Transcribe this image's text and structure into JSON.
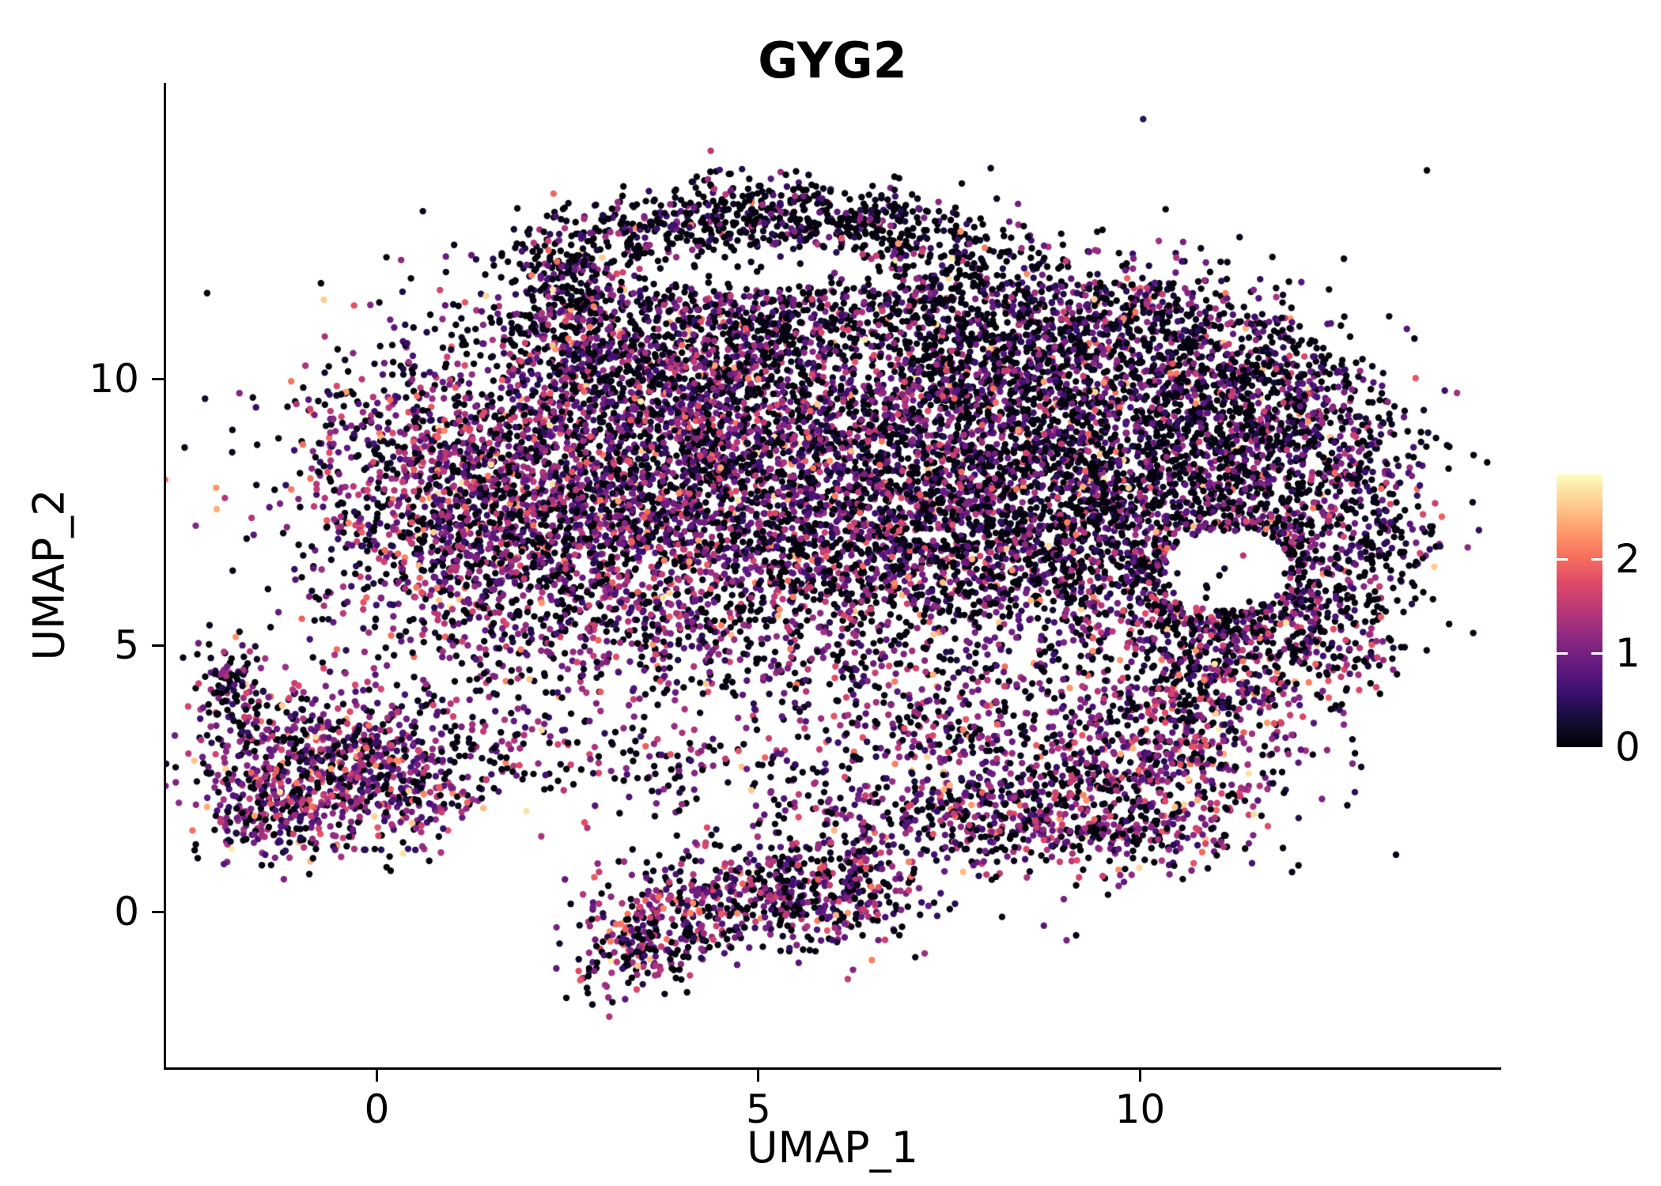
{
  "figure": {
    "background": "#ffffff",
    "axis_color": "#000000"
  },
  "chart_data": {
    "type": "scatter",
    "title": "GYG2",
    "xlabel": "UMAP_1",
    "ylabel": "UMAP_2",
    "xlim": [
      -2.76,
      14.7
    ],
    "ylim": [
      -2.92,
      15.55
    ],
    "xticks": [
      0,
      5,
      10
    ],
    "yticks": [
      0,
      5,
      10
    ],
    "grid": false,
    "legend_position": "right",
    "colorbar": {
      "ticks": [
        0,
        1,
        2
      ],
      "limits": [
        0,
        2.9
      ]
    },
    "colormap_stops": [
      [
        0,
        "#000004"
      ],
      [
        0.1,
        "#140e36"
      ],
      [
        0.2,
        "#3b0f70"
      ],
      [
        0.3,
        "#641a80"
      ],
      [
        0.4,
        "#8c2981"
      ],
      [
        0.5,
        "#b73779"
      ],
      [
        0.6,
        "#de4968"
      ],
      [
        0.7,
        "#f7705c"
      ],
      [
        0.8,
        "#fe9f6d"
      ],
      [
        0.9,
        "#fecf92"
      ],
      [
        1,
        "#fcfdbf"
      ]
    ],
    "point_radius": 4.2,
    "seed": 20240613,
    "count_scale": 0.8,
    "expr_sd": 0.5,
    "high_expr_prob": 0.03,
    "holes": [
      {
        "cx": 11.15,
        "cy": 6.4,
        "rx": 0.82,
        "ry": 0.75,
        "p": 0.93
      },
      {
        "cx": 4.9,
        "cy": 12.1,
        "rx": 1.6,
        "ry": 0.42,
        "p": 0.75
      },
      {
        "cx": 6.4,
        "cy": 10.2,
        "rx": 0.55,
        "ry": 0.45,
        "p": 0.5
      }
    ],
    "clusters": [
      {
        "cx": 0.6,
        "cy": 7.8,
        "sx": 0.95,
        "sy": 1.35,
        "n": 900,
        "p0": 0.33,
        "mu": 1.05
      },
      {
        "cx": 2.2,
        "cy": 8.8,
        "sx": 1.2,
        "sy": 1.3,
        "n": 1200,
        "p0": 0.35,
        "mu": 1.0
      },
      {
        "cx": 2.0,
        "cy": 6.8,
        "sx": 1.0,
        "sy": 0.9,
        "n": 700,
        "p0": 0.33,
        "mu": 1.05
      },
      {
        "cx": 4.2,
        "cy": 9.6,
        "sx": 1.2,
        "sy": 1.1,
        "n": 1000,
        "p0": 0.4,
        "mu": 0.95
      },
      {
        "cx": 4.0,
        "cy": 7.4,
        "sx": 1.2,
        "sy": 1.1,
        "n": 900,
        "p0": 0.35,
        "mu": 1.0
      },
      {
        "cx": 5.8,
        "cy": 8.6,
        "sx": 1.3,
        "sy": 1.3,
        "n": 1000,
        "p0": 0.42,
        "mu": 0.9
      },
      {
        "cx": 5.6,
        "cy": 6.2,
        "sx": 1.5,
        "sy": 0.85,
        "n": 800,
        "p0": 0.38,
        "mu": 1.0
      },
      {
        "cx": 7.6,
        "cy": 9.2,
        "sx": 1.3,
        "sy": 1.2,
        "n": 1200,
        "p0": 0.48,
        "mu": 0.85
      },
      {
        "cx": 7.8,
        "cy": 7.2,
        "sx": 1.3,
        "sy": 1.0,
        "n": 1000,
        "p0": 0.45,
        "mu": 0.9
      },
      {
        "cx": 9.5,
        "cy": 8.8,
        "sx": 1.2,
        "sy": 1.2,
        "n": 1100,
        "p0": 0.48,
        "mu": 0.85
      },
      {
        "cx": 9.3,
        "cy": 6.6,
        "sx": 1.2,
        "sy": 0.9,
        "n": 700,
        "p0": 0.45,
        "mu": 0.9
      },
      {
        "cx": 11.0,
        "cy": 8.3,
        "sx": 0.9,
        "sy": 1.0,
        "n": 600,
        "p0": 0.5,
        "mu": 0.85
      },
      {
        "cx": 6.7,
        "cy": 10.9,
        "sx": 1.3,
        "sy": 0.8,
        "n": 600,
        "p0": 0.5,
        "mu": 0.8
      },
      {
        "cx": 4.6,
        "cy": 11.2,
        "sx": 1.0,
        "sy": 0.7,
        "n": 450,
        "p0": 0.45,
        "mu": 0.9
      },
      {
        "cx": 8.9,
        "cy": 10.7,
        "sx": 1.2,
        "sy": 0.7,
        "n": 500,
        "p0": 0.5,
        "mu": 0.85
      },
      {
        "cx": 10.9,
        "cy": 10.3,
        "sx": 0.9,
        "sy": 0.6,
        "n": 350,
        "p0": 0.5,
        "mu": 0.85
      },
      {
        "cx": 3.0,
        "cy": 10.5,
        "sx": 0.8,
        "sy": 0.6,
        "n": 300,
        "p0": 0.45,
        "mu": 0.9
      },
      {
        "cx": 2.7,
        "cy": 12.1,
        "sx": 0.5,
        "sy": 0.5,
        "n": 200,
        "p0": 0.6,
        "mu": 0.7
      },
      {
        "cx": 4.0,
        "cy": 12.85,
        "sx": 0.85,
        "sy": 0.4,
        "n": 320,
        "p0": 0.62,
        "mu": 0.7
      },
      {
        "cx": 5.5,
        "cy": 13.1,
        "sx": 0.8,
        "sy": 0.35,
        "n": 320,
        "p0": 0.65,
        "mu": 0.65
      },
      {
        "cx": 6.7,
        "cy": 12.85,
        "sx": 0.5,
        "sy": 0.3,
        "n": 150,
        "p0": 0.65,
        "mu": 0.65
      },
      {
        "cx": 7.6,
        "cy": 12.4,
        "sx": 0.5,
        "sy": 0.35,
        "n": 80,
        "p0": 0.6,
        "mu": 0.7
      },
      {
        "cx": 12.35,
        "cy": 7.8,
        "sx": 0.75,
        "sy": 1.2,
        "n": 450,
        "p0": 0.5,
        "mu": 0.9
      },
      {
        "cx": 11.7,
        "cy": 9.4,
        "sx": 0.9,
        "sy": 0.8,
        "n": 450,
        "p0": 0.5,
        "mu": 0.85
      },
      {
        "cx": 12.0,
        "cy": 5.9,
        "sx": 0.7,
        "sy": 0.6,
        "n": 250,
        "p0": 0.45,
        "mu": 0.95
      },
      {
        "cx": 10.6,
        "cy": 5.3,
        "sx": 0.8,
        "sy": 0.5,
        "n": 250,
        "p0": 0.45,
        "mu": 0.9
      },
      {
        "shape": "ring",
        "cx": 11.15,
        "cy": 6.4,
        "r0": 0.85,
        "r1": 1.25,
        "n": 260,
        "p0": 0.5,
        "mu": 0.9
      },
      {
        "cx": -0.75,
        "cy": 2.9,
        "sx": 0.95,
        "sy": 0.8,
        "n": 850,
        "p0": 0.3,
        "mu": 1.1
      },
      {
        "cx": 0.3,
        "cy": 2.2,
        "sx": 0.6,
        "sy": 0.5,
        "n": 250,
        "p0": 0.3,
        "mu": 1.1
      },
      {
        "cx": -1.95,
        "cy": 4.35,
        "sx": 0.25,
        "sy": 0.45,
        "n": 90,
        "p0": 0.4,
        "mu": 0.9
      },
      {
        "cx": -1.3,
        "cy": 1.8,
        "sx": 0.5,
        "sy": 0.4,
        "n": 200,
        "p0": 0.3,
        "mu": 1.1
      },
      {
        "cx": 3.35,
        "cy": -0.55,
        "sx": 0.45,
        "sy": 0.5,
        "n": 260,
        "p0": 0.35,
        "mu": 1.05
      },
      {
        "cx": 4.4,
        "cy": 0.25,
        "sx": 0.65,
        "sy": 0.5,
        "n": 320,
        "p0": 0.35,
        "mu": 1.05
      },
      {
        "cx": 5.6,
        "cy": 0.35,
        "sx": 0.7,
        "sy": 0.55,
        "n": 380,
        "p0": 0.35,
        "mu": 1.05
      },
      {
        "cx": 6.3,
        "cy": 0.6,
        "sx": 0.4,
        "sy": 0.5,
        "n": 150,
        "p0": 0.4,
        "mu": 1.0
      },
      {
        "cx": 9.2,
        "cy": 2.4,
        "sx": 1.15,
        "sy": 0.85,
        "n": 750,
        "p0": 0.33,
        "mu": 1.1
      },
      {
        "cx": 10.6,
        "cy": 3.4,
        "sx": 0.8,
        "sy": 0.8,
        "n": 480,
        "p0": 0.33,
        "mu": 1.1
      },
      {
        "cx": 8.0,
        "cy": 1.8,
        "sx": 0.7,
        "sy": 0.5,
        "n": 220,
        "p0": 0.35,
        "mu": 1.05
      },
      {
        "cx": 11.3,
        "cy": 4.6,
        "sx": 0.6,
        "sy": 0.6,
        "n": 220,
        "p0": 0.4,
        "mu": 1.0
      },
      {
        "cx": 9.9,
        "cy": 1.4,
        "sx": 0.8,
        "sy": 0.4,
        "n": 160,
        "p0": 0.35,
        "mu": 1.1
      },
      {
        "cx": 6.2,
        "cy": 4.6,
        "sx": 2.6,
        "sy": 0.55,
        "n": 320,
        "p0": 0.4,
        "mu": 1.0
      },
      {
        "cx": 2.6,
        "cy": 4.9,
        "sx": 1.2,
        "sy": 0.6,
        "n": 220,
        "p0": 0.38,
        "mu": 1.0
      },
      {
        "cx": 1.8,
        "cy": 3.3,
        "sx": 1.2,
        "sy": 0.6,
        "n": 160,
        "p0": 0.35,
        "mu": 1.05
      },
      {
        "cx": 4.2,
        "cy": 2.6,
        "sx": 1.4,
        "sy": 0.5,
        "n": 180,
        "p0": 0.38,
        "mu": 1.0
      },
      {
        "cx": 6.8,
        "cy": 1.9,
        "sx": 1.0,
        "sy": 0.55,
        "n": 170,
        "p0": 0.38,
        "mu": 1.0
      },
      {
        "cx": 7.3,
        "cy": 3.6,
        "sx": 0.9,
        "sy": 0.5,
        "n": 170,
        "p0": 0.4,
        "mu": 1.0
      },
      {
        "cx": 12.6,
        "cy": 4.9,
        "sx": 0.5,
        "sy": 0.5,
        "n": 120,
        "p0": 0.45,
        "mu": 0.95
      },
      {
        "cx": 13.1,
        "cy": 7.0,
        "sx": 0.35,
        "sy": 0.9,
        "n": 150,
        "p0": 0.5,
        "mu": 0.9
      },
      {
        "cx": 2.3,
        "cy": 11.5,
        "sx": 0.5,
        "sy": 0.5,
        "n": 150,
        "p0": 0.5,
        "mu": 0.85
      },
      {
        "cx": 8.3,
        "cy": 11.6,
        "sx": 0.8,
        "sy": 0.5,
        "n": 200,
        "p0": 0.55,
        "mu": 0.8
      },
      {
        "cx": 10.2,
        "cy": 11.3,
        "sx": 0.7,
        "sy": 0.5,
        "n": 200,
        "p0": 0.5,
        "mu": 0.85
      },
      {
        "cx": 6.0,
        "cy": 7.5,
        "sx": 4.2,
        "sy": 3.2,
        "n": 280,
        "p0": 0.5,
        "mu": 0.85
      }
    ]
  }
}
